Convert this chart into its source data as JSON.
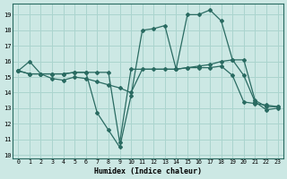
{
  "xlabel": "Humidex (Indice chaleur)",
  "bg_color": "#cce8e4",
  "line_color": "#2a6b62",
  "grid_color": "#aad4ce",
  "xlim": [
    -0.5,
    23.5
  ],
  "ylim": [
    9.8,
    19.7
  ],
  "yticks": [
    10,
    11,
    12,
    13,
    14,
    15,
    16,
    17,
    18,
    19
  ],
  "xticks": [
    0,
    1,
    2,
    3,
    4,
    5,
    6,
    7,
    8,
    9,
    10,
    11,
    12,
    13,
    14,
    15,
    16,
    17,
    18,
    19,
    20,
    21,
    22,
    23
  ],
  "series1_x": [
    0,
    1,
    2,
    3,
    4,
    5,
    6,
    7,
    8,
    9,
    10,
    11,
    12,
    13,
    14,
    15,
    16,
    17,
    18,
    19,
    20,
    21,
    22,
    23
  ],
  "series1_y": [
    15.4,
    16.0,
    15.2,
    15.2,
    15.2,
    15.3,
    15.3,
    12.7,
    11.6,
    10.5,
    13.8,
    18.0,
    18.1,
    18.3,
    15.5,
    19.0,
    19.0,
    19.3,
    18.6,
    16.1,
    15.1,
    13.4,
    12.9,
    13.0
  ],
  "series2_x": [
    0,
    1,
    2,
    3,
    4,
    5,
    6,
    7,
    8,
    9,
    10,
    14,
    15,
    16,
    17,
    18,
    19,
    20,
    21,
    22,
    23
  ],
  "series2_y": [
    15.4,
    15.2,
    15.2,
    15.2,
    15.2,
    15.3,
    15.3,
    15.3,
    15.3,
    10.8,
    15.5,
    15.5,
    15.6,
    15.7,
    15.8,
    16.0,
    16.1,
    16.1,
    13.5,
    13.1,
    13.1
  ],
  "series3_x": [
    0,
    1,
    2,
    3,
    4,
    5,
    6,
    7,
    8,
    9,
    10,
    11,
    12,
    13,
    14,
    15,
    16,
    17,
    18,
    19,
    20,
    21,
    22,
    23
  ],
  "series3_y": [
    15.4,
    15.2,
    15.2,
    14.9,
    14.8,
    15.0,
    14.9,
    14.7,
    14.5,
    14.3,
    14.0,
    15.5,
    15.5,
    15.5,
    15.5,
    15.6,
    15.6,
    15.6,
    15.7,
    15.1,
    13.4,
    13.3,
    13.2,
    13.1
  ]
}
